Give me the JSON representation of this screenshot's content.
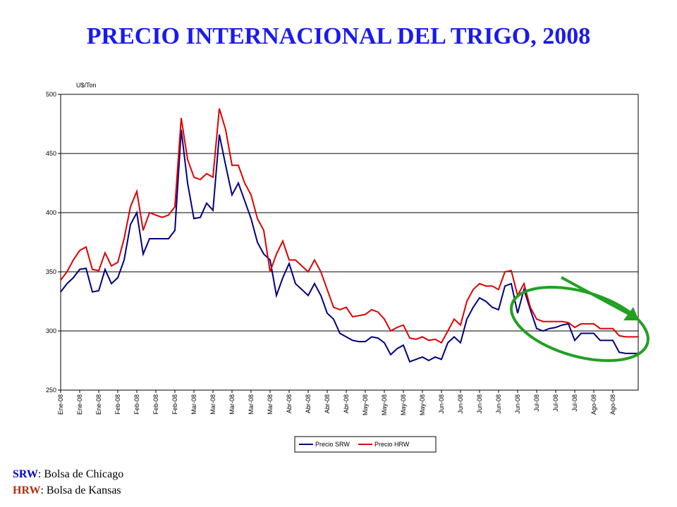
{
  "chart_data": {
    "type": "line",
    "title": "PRECIO INTERNACIONAL DEL TRIGO, 2008",
    "y_label": "U$/Ton",
    "categories": [
      "Ene-08",
      null,
      null,
      "Ene-08",
      null,
      null,
      "Ene-08",
      null,
      null,
      "Feb-08",
      null,
      null,
      "Feb-08",
      null,
      null,
      "Feb-08",
      null,
      null,
      "Feb-08",
      null,
      null,
      "Mar-08",
      null,
      null,
      "Mar-08",
      null,
      null,
      "Mar-08",
      null,
      null,
      "Mar-08",
      null,
      null,
      "Mar-08",
      null,
      null,
      "Abr-08",
      null,
      null,
      "Abr-08",
      null,
      null,
      "Abr-08",
      null,
      null,
      "Abr-08",
      null,
      null,
      "May-08",
      null,
      null,
      "May-08",
      null,
      null,
      "May-08",
      null,
      null,
      "May-08",
      null,
      null,
      "Jun-08",
      null,
      null,
      "Jun-08",
      null,
      null,
      "Jun-08",
      null,
      null,
      "Jun-08",
      null,
      null,
      "Jun-08",
      null,
      null,
      "Jul-08",
      null,
      null,
      "Jul-08",
      null,
      null,
      "Jul-08",
      null,
      null,
      "Ago-08",
      null,
      null,
      "Ago-08",
      null,
      null,
      null,
      null
    ],
    "series": [
      {
        "name": "Precio SRW",
        "color": "#000080",
        "values": [
          333,
          340,
          345,
          352,
          353,
          333,
          334,
          352,
          340,
          345,
          360,
          390,
          400,
          365,
          378,
          378,
          378,
          378,
          385,
          470,
          425,
          395,
          396,
          408,
          402,
          466,
          440,
          415,
          425,
          410,
          395,
          375,
          365,
          360,
          330,
          345,
          357,
          340,
          335,
          330,
          340,
          330,
          315,
          310,
          298,
          295,
          292,
          291,
          291,
          295,
          294,
          290,
          280,
          285,
          288,
          274,
          276,
          278,
          275,
          278,
          276,
          290,
          295,
          290,
          310,
          320,
          328,
          325,
          320,
          318,
          338,
          340,
          315,
          335,
          318,
          302,
          300,
          302,
          303,
          305,
          306,
          292,
          298,
          298,
          298,
          292,
          292,
          292,
          282,
          281,
          281,
          281
        ]
      },
      {
        "name": "Precio HRW",
        "color": "#dd0000",
        "values": [
          343,
          350,
          360,
          368,
          371,
          352,
          351,
          366,
          355,
          358,
          378,
          405,
          418,
          385,
          400,
          398,
          396,
          398,
          405,
          480,
          445,
          430,
          428,
          433,
          430,
          488,
          470,
          440,
          440,
          425,
          415,
          395,
          385,
          350,
          365,
          376,
          360,
          360,
          355,
          350,
          360,
          350,
          335,
          320,
          318,
          320,
          312,
          313,
          314,
          318,
          316,
          310,
          300,
          303,
          305,
          294,
          293,
          295,
          292,
          293,
          290,
          300,
          310,
          305,
          325,
          335,
          340,
          338,
          338,
          335,
          350,
          351,
          330,
          340,
          320,
          310,
          308,
          308,
          308,
          308,
          307,
          303,
          306,
          306,
          306,
          302,
          302,
          302,
          296,
          295,
          295,
          295
        ]
      }
    ],
    "ylim": [
      250,
      500
    ],
    "yticks": [
      250,
      300,
      350,
      400,
      450,
      500
    ],
    "grid": true,
    "notes": [
      {
        "label": "SRW",
        "text": ": Bolsa de Chicago",
        "color": "#0000cc"
      },
      {
        "label": "HRW",
        "text": ": Bolsa de Kansas",
        "color": "#b03010"
      }
    ]
  }
}
